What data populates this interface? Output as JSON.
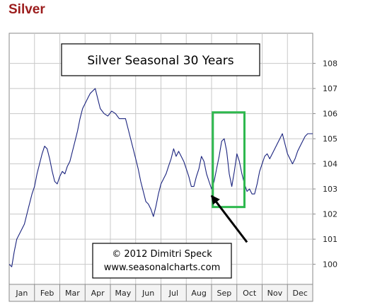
{
  "page": {
    "heading": "Silver"
  },
  "colors": {
    "heading": "#9b1c1c",
    "line": "#1a237e",
    "grid": "#c8c8c8",
    "highlight_box": "#2db84d",
    "arrow": "#000000"
  },
  "chart_data": {
    "type": "line",
    "title": "Silver Seasonal 30 Years",
    "credit": [
      "© 2012  Dimitri Speck",
      "www.seasonalcharts.com"
    ],
    "xlabel": "",
    "ylabel": "",
    "x_categories": [
      "Jan",
      "Feb",
      "Mar",
      "Apr",
      "May",
      "Jun",
      "Jul",
      "Aug",
      "Sep",
      "Oct",
      "Nov",
      "Dec"
    ],
    "yticks": [
      100,
      101,
      102,
      103,
      104,
      105,
      106,
      107,
      108
    ],
    "ylim": [
      99.2,
      109.2
    ],
    "y_axis_position": "right",
    "grid": true,
    "legend": "none",
    "x_unit": "month (0 = start of Jan, 12 = end of Dec)",
    "series": [
      {
        "points": [
          [
            0.0,
            100.0
          ],
          [
            0.1,
            99.9
          ],
          [
            0.2,
            100.5
          ],
          [
            0.3,
            101.0
          ],
          [
            0.45,
            101.3
          ],
          [
            0.6,
            101.6
          ],
          [
            0.75,
            102.2
          ],
          [
            0.9,
            102.8
          ],
          [
            1.0,
            103.1
          ],
          [
            1.1,
            103.6
          ],
          [
            1.2,
            104.0
          ],
          [
            1.3,
            104.4
          ],
          [
            1.4,
            104.7
          ],
          [
            1.5,
            104.6
          ],
          [
            1.6,
            104.2
          ],
          [
            1.7,
            103.7
          ],
          [
            1.8,
            103.3
          ],
          [
            1.9,
            103.2
          ],
          [
            2.0,
            103.5
          ],
          [
            2.1,
            103.7
          ],
          [
            2.2,
            103.6
          ],
          [
            2.3,
            103.9
          ],
          [
            2.4,
            104.1
          ],
          [
            2.5,
            104.5
          ],
          [
            2.6,
            104.9
          ],
          [
            2.7,
            105.3
          ],
          [
            2.8,
            105.8
          ],
          [
            2.9,
            106.2
          ],
          [
            3.0,
            106.4
          ],
          [
            3.1,
            106.6
          ],
          [
            3.2,
            106.8
          ],
          [
            3.3,
            106.9
          ],
          [
            3.4,
            107.0
          ],
          [
            3.5,
            106.6
          ],
          [
            3.6,
            106.2
          ],
          [
            3.75,
            106.0
          ],
          [
            3.9,
            105.9
          ],
          [
            4.05,
            106.1
          ],
          [
            4.2,
            106.0
          ],
          [
            4.35,
            105.8
          ],
          [
            4.5,
            105.8
          ],
          [
            4.6,
            105.8
          ],
          [
            4.7,
            105.4
          ],
          [
            4.8,
            105.0
          ],
          [
            4.9,
            104.6
          ],
          [
            5.0,
            104.2
          ],
          [
            5.1,
            103.8
          ],
          [
            5.2,
            103.3
          ],
          [
            5.3,
            102.9
          ],
          [
            5.4,
            102.5
          ],
          [
            5.5,
            102.4
          ],
          [
            5.6,
            102.2
          ],
          [
            5.7,
            101.9
          ],
          [
            5.8,
            102.3
          ],
          [
            5.9,
            102.8
          ],
          [
            6.0,
            103.2
          ],
          [
            6.1,
            103.4
          ],
          [
            6.2,
            103.6
          ],
          [
            6.3,
            103.9
          ],
          [
            6.4,
            104.2
          ],
          [
            6.5,
            104.6
          ],
          [
            6.6,
            104.3
          ],
          [
            6.7,
            104.5
          ],
          [
            6.8,
            104.3
          ],
          [
            6.9,
            104.1
          ],
          [
            7.0,
            103.8
          ],
          [
            7.1,
            103.5
          ],
          [
            7.2,
            103.1
          ],
          [
            7.3,
            103.1
          ],
          [
            7.4,
            103.5
          ],
          [
            7.5,
            103.8
          ],
          [
            7.6,
            104.3
          ],
          [
            7.7,
            104.1
          ],
          [
            7.8,
            103.6
          ],
          [
            7.9,
            103.3
          ],
          [
            8.0,
            103.0
          ],
          [
            8.1,
            103.3
          ],
          [
            8.2,
            103.8
          ],
          [
            8.3,
            104.3
          ],
          [
            8.4,
            104.9
          ],
          [
            8.5,
            105.0
          ],
          [
            8.6,
            104.5
          ],
          [
            8.7,
            103.6
          ],
          [
            8.8,
            103.1
          ],
          [
            8.9,
            103.7
          ],
          [
            9.0,
            104.4
          ],
          [
            9.1,
            104.1
          ],
          [
            9.2,
            103.6
          ],
          [
            9.3,
            103.2
          ],
          [
            9.4,
            102.9
          ],
          [
            9.5,
            103.0
          ],
          [
            9.6,
            102.8
          ],
          [
            9.7,
            102.8
          ],
          [
            9.8,
            103.2
          ],
          [
            9.9,
            103.7
          ],
          [
            10.0,
            104.0
          ],
          [
            10.1,
            104.3
          ],
          [
            10.2,
            104.4
          ],
          [
            10.3,
            104.2
          ],
          [
            10.4,
            104.4
          ],
          [
            10.5,
            104.6
          ],
          [
            10.6,
            104.8
          ],
          [
            10.7,
            105.0
          ],
          [
            10.8,
            105.2
          ],
          [
            10.9,
            104.8
          ],
          [
            11.0,
            104.4
          ],
          [
            11.1,
            104.2
          ],
          [
            11.2,
            104.0
          ],
          [
            11.3,
            104.2
          ],
          [
            11.4,
            104.5
          ],
          [
            11.5,
            104.7
          ],
          [
            11.6,
            104.9
          ],
          [
            11.7,
            105.1
          ],
          [
            11.8,
            105.2
          ],
          [
            12.0,
            105.2
          ]
        ]
      }
    ],
    "annotations": {
      "highlight_box": {
        "x_range": [
          8.05,
          9.3
        ],
        "y_range": [
          102.28,
          106.05
        ]
      },
      "arrow": {
        "from": [
          9.4,
          100.88
        ],
        "to": [
          8.0,
          102.73
        ]
      }
    }
  }
}
